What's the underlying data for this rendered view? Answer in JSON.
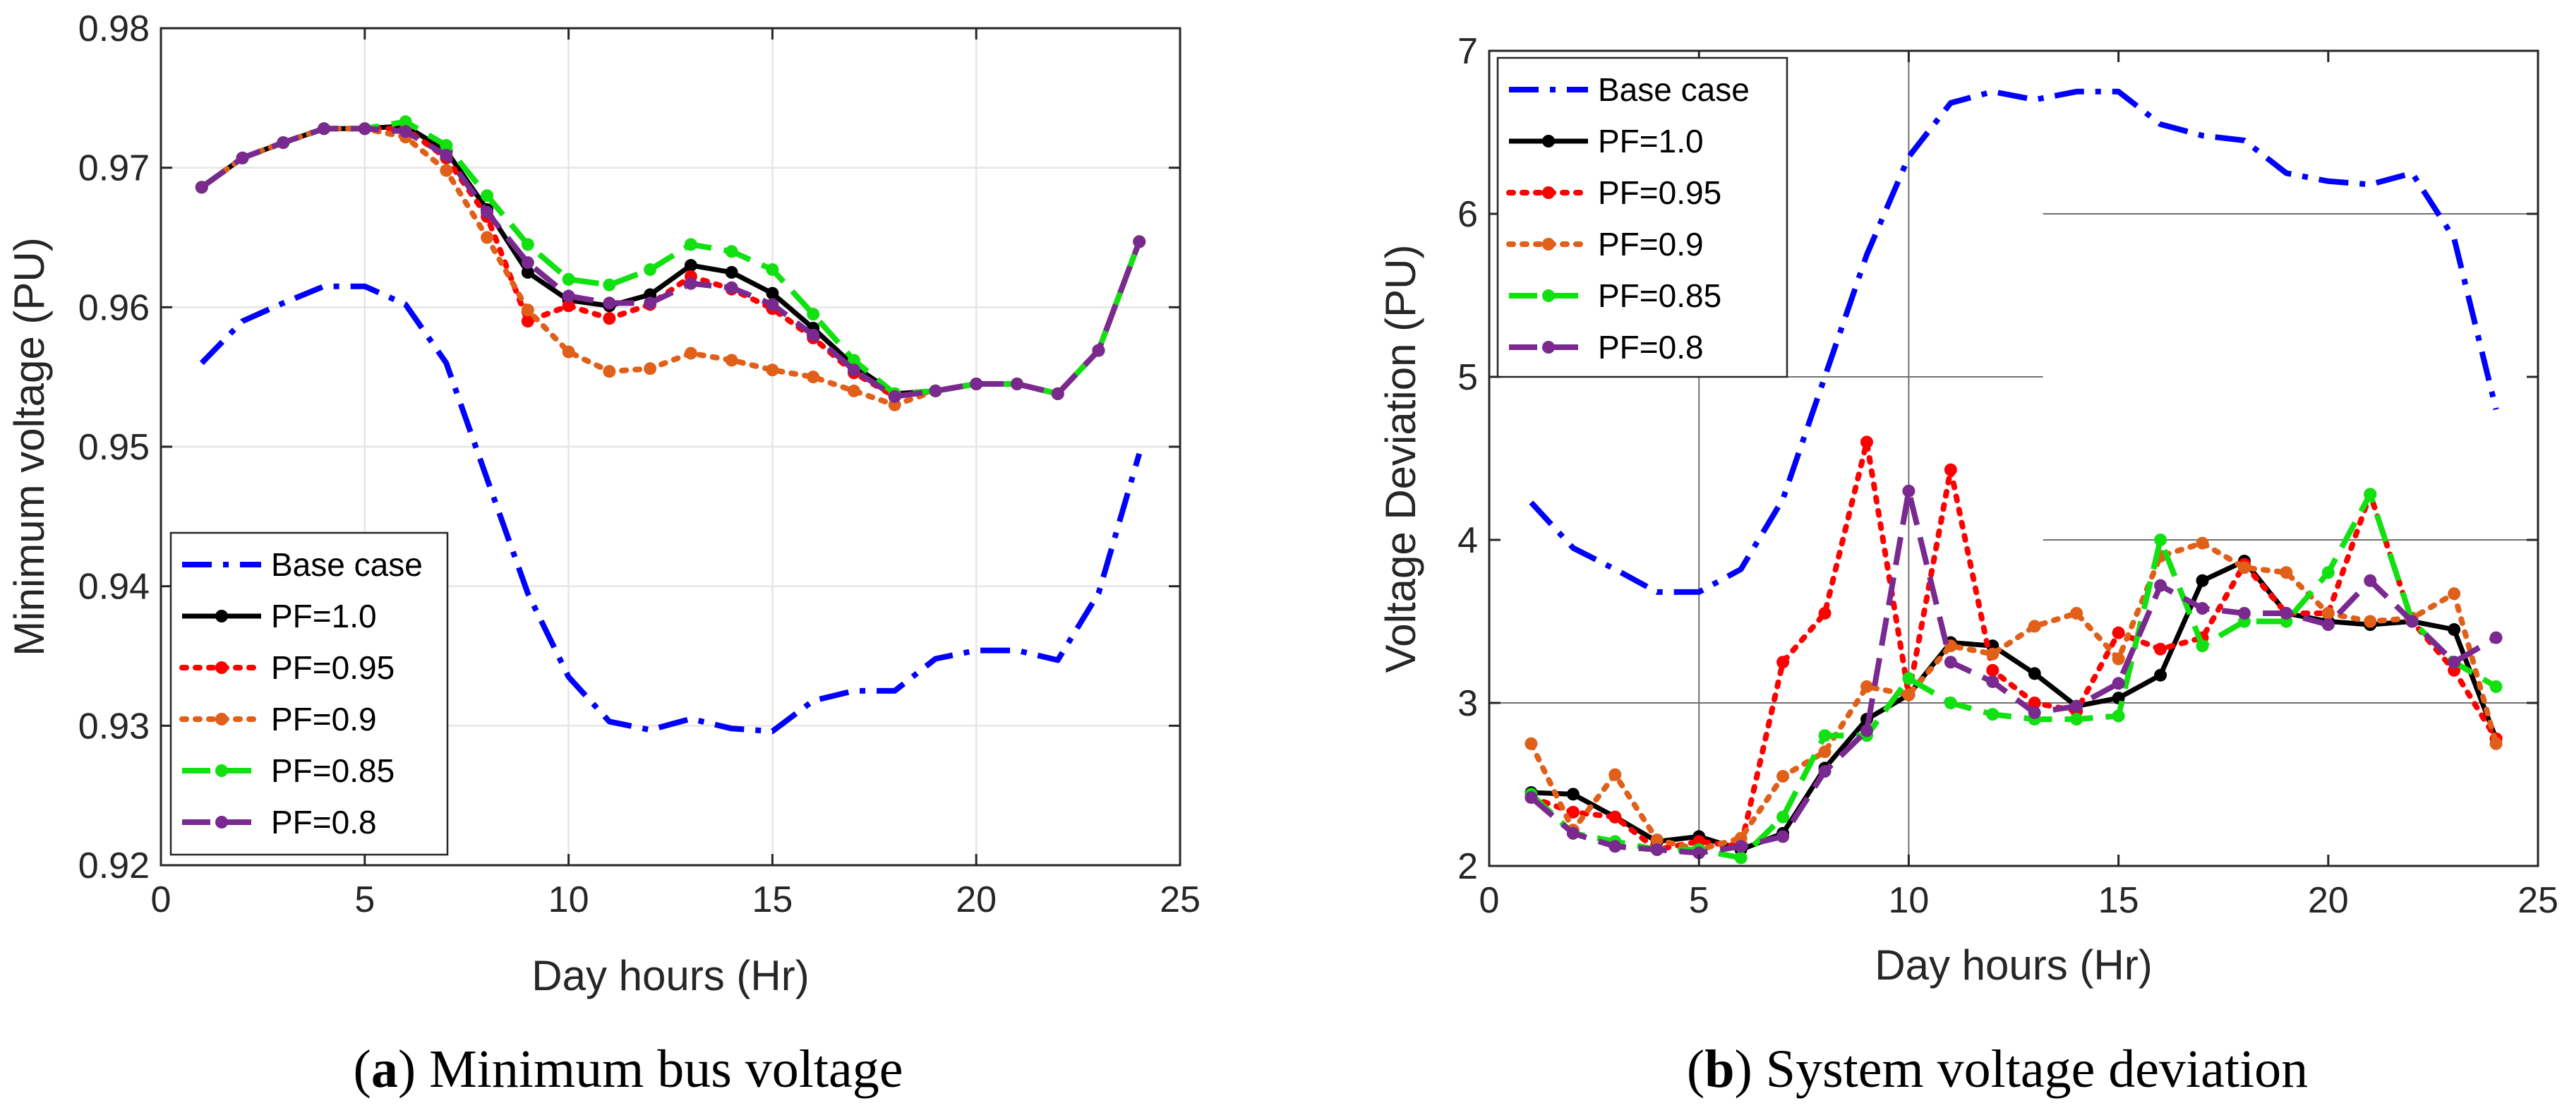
{
  "chart_data": [
    {
      "panel_id": "a",
      "type": "line",
      "xlabel": "Day hours (Hr)",
      "ylabel": "Minimum voltage (PU)",
      "xlim": [
        0,
        25
      ],
      "ylim": [
        0.92,
        0.98
      ],
      "xticks": [
        0,
        5,
        10,
        15,
        20,
        25
      ],
      "yticks": [
        0.92,
        0.93,
        0.94,
        0.95,
        0.96,
        0.97,
        0.98
      ],
      "xtick_labels": [
        "0",
        "5",
        "10",
        "15",
        "20",
        "25"
      ],
      "ytick_labels": [
        "0.92",
        "0.93",
        "0.94",
        "0.95",
        "0.96",
        "0.97",
        "0.98"
      ],
      "grid": true,
      "legend_position": "bottom-left",
      "caption_letter": "a",
      "caption_text": "Minimum bus voltage",
      "x": [
        1,
        2,
        3,
        4,
        5,
        6,
        7,
        8,
        9,
        10,
        11,
        12,
        13,
        14,
        15,
        16,
        17,
        18,
        19,
        20,
        21,
        22,
        23,
        24
      ],
      "series": [
        {
          "name": "Base case",
          "color": "#0000ff",
          "dash": "dashdot",
          "marker": false,
          "values": [
            0.956,
            0.959,
            0.9603,
            0.9615,
            0.9615,
            0.9602,
            0.956,
            0.9477,
            0.9395,
            0.9335,
            0.9303,
            0.9297,
            0.9305,
            0.9298,
            0.9296,
            0.9318,
            0.9325,
            0.9325,
            0.9348,
            0.9354,
            0.9354,
            0.9347,
            0.9395,
            0.9495
          ]
        },
        {
          "name": "PF=1.0",
          "color": "#000000",
          "dash": "solid",
          "marker": true,
          "values": [
            0.9686,
            0.9707,
            0.9718,
            0.9728,
            0.9728,
            0.973,
            0.9712,
            0.967,
            0.9625,
            0.9605,
            0.9601,
            0.9609,
            0.963,
            0.9625,
            0.961,
            0.9585,
            0.9558,
            0.9538,
            0.954,
            0.9545,
            0.9545,
            0.9538,
            0.9569,
            0.9647
          ]
        },
        {
          "name": "PF=0.95",
          "color": "#ff0000",
          "dash": "dotted",
          "marker": true,
          "values": [
            0.9686,
            0.9707,
            0.9718,
            0.9728,
            0.9728,
            0.9728,
            0.9707,
            0.9665,
            0.959,
            0.9601,
            0.9592,
            0.9602,
            0.9622,
            0.9613,
            0.9599,
            0.9578,
            0.9553,
            0.9536,
            0.954,
            0.9545,
            0.9545,
            0.9538,
            0.9569,
            0.9647
          ]
        },
        {
          "name": "PF=0.9",
          "color": "#e0601a",
          "dash": "dotted",
          "marker": true,
          "values": [
            0.9686,
            0.9707,
            0.9718,
            0.9728,
            0.9728,
            0.9722,
            0.9698,
            0.965,
            0.9598,
            0.9568,
            0.9554,
            0.9556,
            0.9567,
            0.9562,
            0.9555,
            0.955,
            0.954,
            0.953,
            0.954,
            0.9545,
            0.9545,
            0.9538,
            0.9569,
            0.9647
          ]
        },
        {
          "name": "PF=0.85",
          "color": "#11e011",
          "dash": "dashed",
          "marker": true,
          "values": [
            0.9686,
            0.9707,
            0.9718,
            0.9728,
            0.9728,
            0.9733,
            0.9716,
            0.968,
            0.9645,
            0.962,
            0.9616,
            0.9627,
            0.9645,
            0.964,
            0.9627,
            0.9595,
            0.9562,
            0.9538,
            0.954,
            0.9545,
            0.9545,
            0.9538,
            0.9569,
            0.9647
          ]
        },
        {
          "name": "PF=0.8",
          "color": "#7a2a8f",
          "dash": "dashed",
          "marker": true,
          "values": [
            0.9686,
            0.9707,
            0.9718,
            0.9728,
            0.9728,
            0.9726,
            0.9709,
            0.9668,
            0.9632,
            0.9608,
            0.9603,
            0.9603,
            0.9617,
            0.9614,
            0.9602,
            0.958,
            0.9555,
            0.9536,
            0.954,
            0.9545,
            0.9545,
            0.9538,
            0.9569,
            0.9647
          ]
        }
      ]
    },
    {
      "panel_id": "b",
      "type": "line",
      "xlabel": "Day hours (Hr)",
      "ylabel": "Voltage Deviation (PU)",
      "xlim": [
        0,
        25
      ],
      "ylim": [
        2,
        7
      ],
      "xticks": [
        0,
        5,
        10,
        15,
        20,
        25
      ],
      "yticks": [
        2,
        3,
        4,
        5,
        6,
        7
      ],
      "xtick_labels": [
        "0",
        "5",
        "10",
        "15",
        "20",
        "25"
      ],
      "ytick_labels": [
        "2",
        "3",
        "4",
        "5",
        "6",
        "7"
      ],
      "grid": true,
      "legend_position": "top-left",
      "caption_letter": "b",
      "caption_text": "System voltage deviation",
      "x": [
        1,
        2,
        3,
        4,
        5,
        6,
        7,
        8,
        9,
        10,
        11,
        12,
        13,
        14,
        15,
        16,
        17,
        18,
        19,
        20,
        21,
        22,
        23,
        24
      ],
      "series": [
        {
          "name": "Base case",
          "color": "#0000ff",
          "dash": "dashdot",
          "marker": false,
          "values": [
            4.23,
            3.95,
            3.82,
            3.68,
            3.68,
            3.82,
            4.25,
            5.0,
            5.75,
            6.35,
            6.68,
            6.75,
            6.7,
            6.75,
            6.75,
            6.55,
            6.48,
            6.45,
            6.25,
            6.2,
            6.18,
            6.25,
            5.85,
            4.8
          ]
        },
        {
          "name": "PF=1.0",
          "color": "#000000",
          "dash": "solid",
          "marker": true,
          "values": [
            2.45,
            2.44,
            2.3,
            2.15,
            2.18,
            2.1,
            2.2,
            2.6,
            2.9,
            3.05,
            3.37,
            3.35,
            3.18,
            2.98,
            3.03,
            3.17,
            3.75,
            3.87,
            3.55,
            3.5,
            3.48,
            3.5,
            3.45,
            2.78
          ]
        },
        {
          "name": "PF=0.95",
          "color": "#ff0000",
          "dash": "dotted",
          "marker": true,
          "values": [
            2.42,
            2.33,
            2.3,
            2.1,
            2.15,
            2.12,
            3.25,
            3.55,
            4.6,
            3.05,
            4.43,
            3.2,
            3.0,
            2.95,
            3.43,
            3.33,
            3.4,
            3.85,
            3.55,
            3.55,
            4.28,
            3.5,
            3.2,
            2.78
          ]
        },
        {
          "name": "PF=0.9",
          "color": "#e0601a",
          "dash": "dotted",
          "marker": true,
          "values": [
            2.75,
            2.22,
            2.56,
            2.16,
            2.1,
            2.17,
            2.55,
            2.7,
            3.1,
            3.05,
            3.35,
            3.3,
            3.47,
            3.55,
            3.27,
            3.9,
            3.98,
            3.83,
            3.8,
            3.55,
            3.5,
            3.52,
            3.67,
            2.75
          ]
        },
        {
          "name": "PF=0.85",
          "color": "#11e011",
          "dash": "dashed",
          "marker": true,
          "values": [
            2.44,
            2.2,
            2.15,
            2.1,
            2.1,
            2.05,
            2.3,
            2.8,
            2.8,
            3.15,
            3.0,
            2.93,
            2.9,
            2.9,
            2.92,
            4.0,
            3.35,
            3.5,
            3.5,
            3.8,
            4.28,
            3.5,
            3.25,
            3.1
          ]
        },
        {
          "name": "PF=0.8",
          "color": "#7a2a8f",
          "dash": "dashed",
          "marker": true,
          "values": [
            2.42,
            2.2,
            2.12,
            2.1,
            2.08,
            2.12,
            2.18,
            2.58,
            2.83,
            4.3,
            3.25,
            3.13,
            2.94,
            2.98,
            3.12,
            3.72,
            3.58,
            3.55,
            3.55,
            3.48,
            3.75,
            3.5,
            3.25,
            3.4
          ]
        }
      ]
    }
  ]
}
